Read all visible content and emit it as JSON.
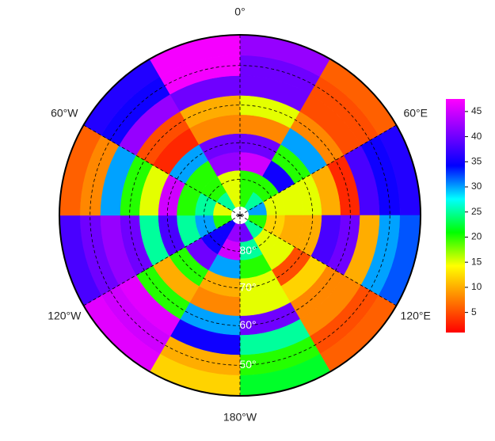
{
  "chart_data": {
    "type": "polar_map",
    "lats": [
      -85,
      -80,
      -75,
      -70,
      -65,
      -60,
      -55,
      -50,
      -45
    ],
    "lons": [
      15,
      45,
      75,
      105,
      135,
      165,
      195,
      225,
      255,
      285,
      315,
      345
    ],
    "values": [
      [
        20,
        25,
        30,
        20,
        25,
        40,
        42,
        35,
        20,
        15,
        25,
        15
      ],
      [
        20,
        20,
        15,
        12,
        15,
        25,
        45,
        35,
        30,
        25,
        20,
        15
      ],
      [
        45,
        35,
        15,
        10,
        15,
        20,
        30,
        40,
        25,
        20,
        20,
        42
      ],
      [
        40,
        20,
        15,
        10,
        5,
        15,
        10,
        20,
        38,
        45,
        30,
        40
      ],
      [
        8,
        30,
        10,
        38,
        12,
        15,
        8,
        10,
        25,
        15,
        3,
        8
      ],
      [
        15,
        8,
        3,
        40,
        8,
        40,
        30,
        20,
        40,
        20,
        5,
        10
      ],
      [
        40,
        5,
        38,
        10,
        8,
        25,
        35,
        46,
        42,
        30,
        42,
        40
      ],
      [
        40,
        5,
        35,
        30,
        5,
        20,
        10,
        45,
        40,
        8,
        35,
        47
      ],
      [
        42,
        6,
        36,
        32,
        6,
        22,
        12,
        46,
        38,
        6,
        36,
        47
      ]
    ],
    "colormap": [
      "#ff0000",
      "#ff8000",
      "#ffff00",
      "#00ff00",
      "#00ffff",
      "#0000ff",
      "#8000ff",
      "#ff00ff"
    ],
    "clim": [
      1,
      47.5
    ],
    "cbar_ticks": [
      5,
      10,
      15,
      20,
      25,
      30,
      35,
      40,
      45
    ],
    "lat_circles": [
      {
        "value": -80,
        "label": "80°"
      },
      {
        "value": -70,
        "label": "70°"
      },
      {
        "value": -60,
        "label": "60°"
      },
      {
        "value": -50,
        "label": "50°"
      }
    ],
    "lon_labels": [
      {
        "value": 0,
        "label": "0°"
      },
      {
        "value": 60,
        "label": "60°E"
      },
      {
        "value": 120,
        "label": "120°E"
      },
      {
        "value": 180,
        "label": "180°W"
      },
      {
        "value": -120,
        "label": "120°W"
      },
      {
        "value": -60,
        "label": "60°W"
      }
    ]
  }
}
